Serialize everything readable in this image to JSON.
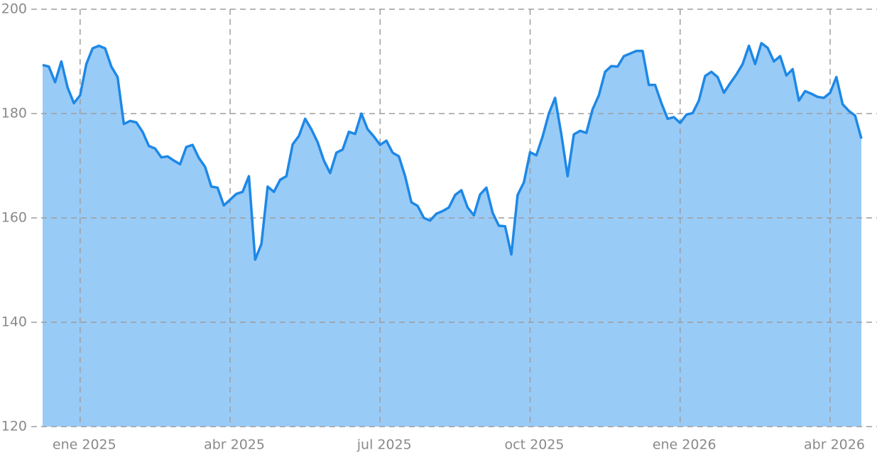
{
  "chart_data": {
    "type": "area",
    "categories": [
      null,
      null,
      null,
      null,
      null,
      null,
      "ene 2025",
      null,
      null,
      null,
      null,
      null,
      null,
      null,
      null,
      null,
      null,
      null,
      null,
      null,
      null,
      null,
      null,
      null,
      null,
      null,
      null,
      null,
      null,
      null,
      "abr 2025",
      null,
      null,
      null,
      null,
      null,
      null,
      null,
      null,
      null,
      null,
      null,
      null,
      null,
      null,
      null,
      null,
      null,
      null,
      null,
      null,
      null,
      null,
      null,
      "jul 2025",
      null,
      null,
      null,
      null,
      null,
      null,
      null,
      null,
      null,
      null,
      null,
      null,
      null,
      null,
      null,
      null,
      null,
      null,
      null,
      null,
      null,
      null,
      null,
      "oct 2025",
      null,
      null,
      null,
      null,
      null,
      null,
      null,
      null,
      null,
      null,
      null,
      null,
      null,
      null,
      null,
      null,
      null,
      null,
      null,
      null,
      null,
      null,
      null,
      "ene 2026",
      null,
      null,
      null,
      null,
      null,
      null,
      null,
      null,
      null,
      null,
      null,
      null,
      null,
      null,
      null,
      null,
      null,
      null,
      null,
      null,
      null,
      null,
      null,
      "abr 2026",
      null,
      null,
      null,
      null,
      null
    ],
    "values": [
      189.3,
      189,
      186,
      190,
      185,
      182,
      183.5,
      189.5,
      192.5,
      193,
      192.5,
      189,
      187,
      178,
      178.6,
      178.3,
      176.5,
      173.8,
      173.3,
      171.6,
      171.8,
      171,
      170.3,
      173.6,
      174,
      171.5,
      169.8,
      166,
      165.8,
      162.4,
      163.5,
      164.6,
      165,
      168,
      152,
      155,
      166,
      165,
      167.3,
      168,
      174.1,
      175.7,
      179,
      177,
      174.5,
      171,
      168.6,
      172.5,
      173.1,
      176.5,
      176.1,
      180,
      177,
      175.6,
      174,
      174.8,
      172.5,
      171.8,
      168,
      163,
      162.3,
      160,
      159.5,
      160.8,
      161.3,
      162,
      164.4,
      165.3,
      162,
      160.5,
      164.5,
      165.8,
      161,
      158.5,
      158.4,
      153,
      164.4,
      166.8,
      172.6,
      172,
      175.6,
      180,
      183,
      176,
      168,
      176,
      176.7,
      176.3,
      180.8,
      183.5,
      188,
      189.1,
      189,
      191,
      191.5,
      192,
      192,
      185.5,
      185.5,
      182,
      179,
      179.3,
      178.2,
      179.8,
      180.1,
      182.5,
      187.2,
      188,
      187,
      184,
      185.8,
      187.5,
      189.5,
      193,
      189.5,
      193.5,
      192.6,
      190,
      191,
      187.3,
      188.5,
      182.5,
      184.3,
      183.8,
      183.2,
      183,
      184,
      187,
      181.8,
      180.5,
      179.6,
      175.2
    ],
    "color": "#1e88e5",
    "fill": "#99cbf7",
    "ylim": [
      120,
      200
    ],
    "yticks": [
      120,
      140,
      160,
      180,
      200
    ],
    "grid": true
  }
}
